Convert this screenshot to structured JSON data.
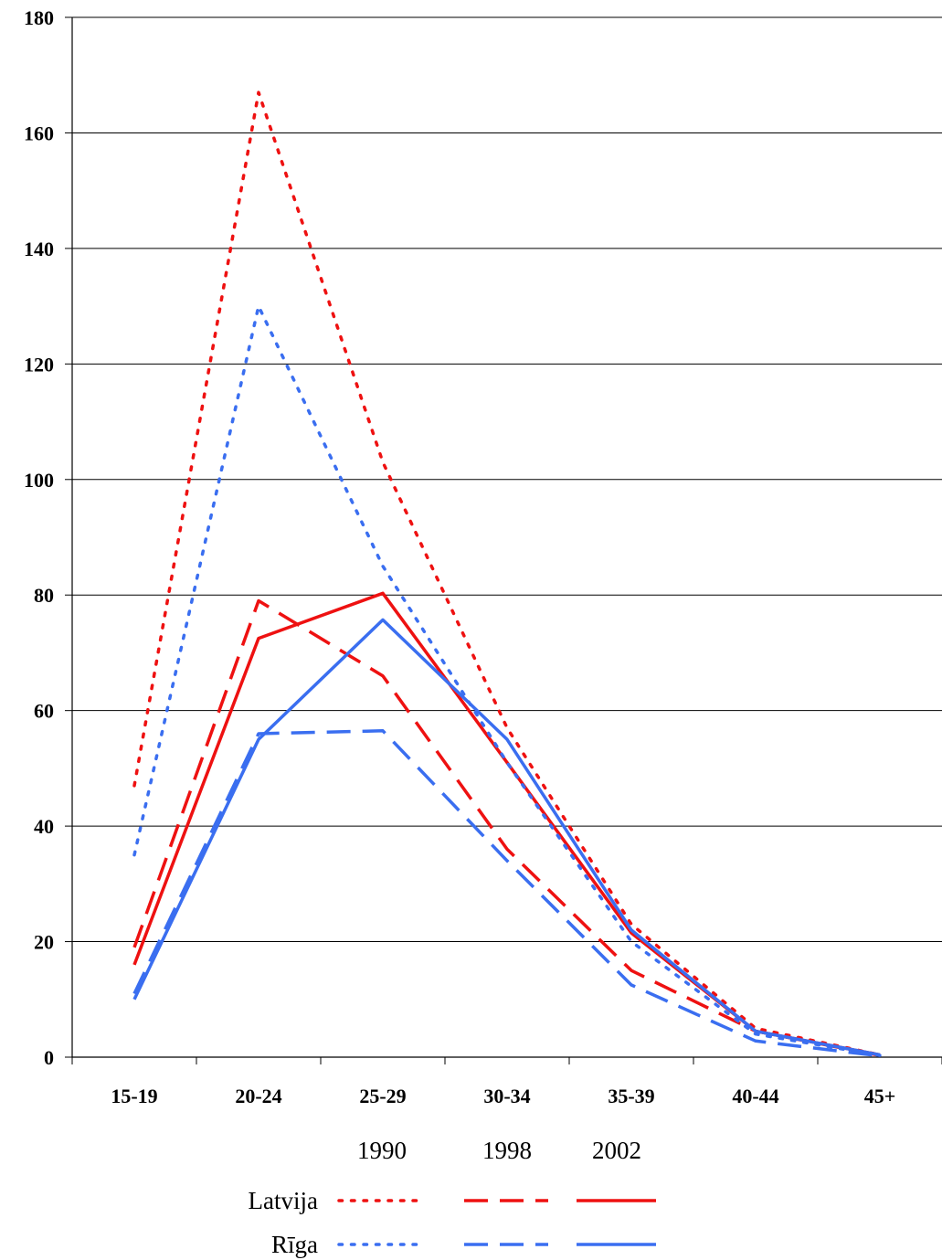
{
  "chart_data": {
    "type": "line",
    "categories": [
      "15-19",
      "20-24",
      "25-29",
      "30-34",
      "35-39",
      "40-44",
      "45+"
    ],
    "ylim": [
      0,
      180
    ],
    "yticks": [
      0,
      20,
      40,
      60,
      80,
      100,
      120,
      140,
      160,
      180
    ],
    "grid": true,
    "legend_placement": "bottom",
    "legend": {
      "years": [
        "1990",
        "1998",
        "2002"
      ],
      "groups": [
        "Latvija",
        "Rīga"
      ]
    },
    "series": [
      {
        "group": "Latvija",
        "year": "1990",
        "style": "dotted",
        "color": "#ee1111",
        "values": [
          47,
          167,
          103,
          57,
          23,
          5,
          0.4
        ]
      },
      {
        "group": "Latvija",
        "year": "1998",
        "style": "dashed",
        "color": "#ee1111",
        "values": [
          19,
          79,
          66,
          36,
          15,
          4.5,
          0.3
        ]
      },
      {
        "group": "Latvija",
        "year": "2002",
        "style": "solid",
        "color": "#ee1111",
        "values": [
          16,
          72.5,
          80.3,
          51,
          21.5,
          4.5,
          0.4
        ]
      },
      {
        "group": "Rīga",
        "year": "1990",
        "style": "dotted",
        "color": "#3a6ef0",
        "values": [
          35,
          130,
          85,
          51,
          20,
          4,
          0.3
        ]
      },
      {
        "group": "Rīga",
        "year": "1998",
        "style": "dashed",
        "color": "#3a6ef0",
        "values": [
          11,
          56,
          56.5,
          34,
          12.5,
          2.8,
          0.2
        ]
      },
      {
        "group": "Rīga",
        "year": "2002",
        "style": "solid",
        "color": "#3a6ef0",
        "values": [
          10,
          55,
          75.7,
          55,
          22,
          4.5,
          0.4
        ]
      }
    ]
  }
}
